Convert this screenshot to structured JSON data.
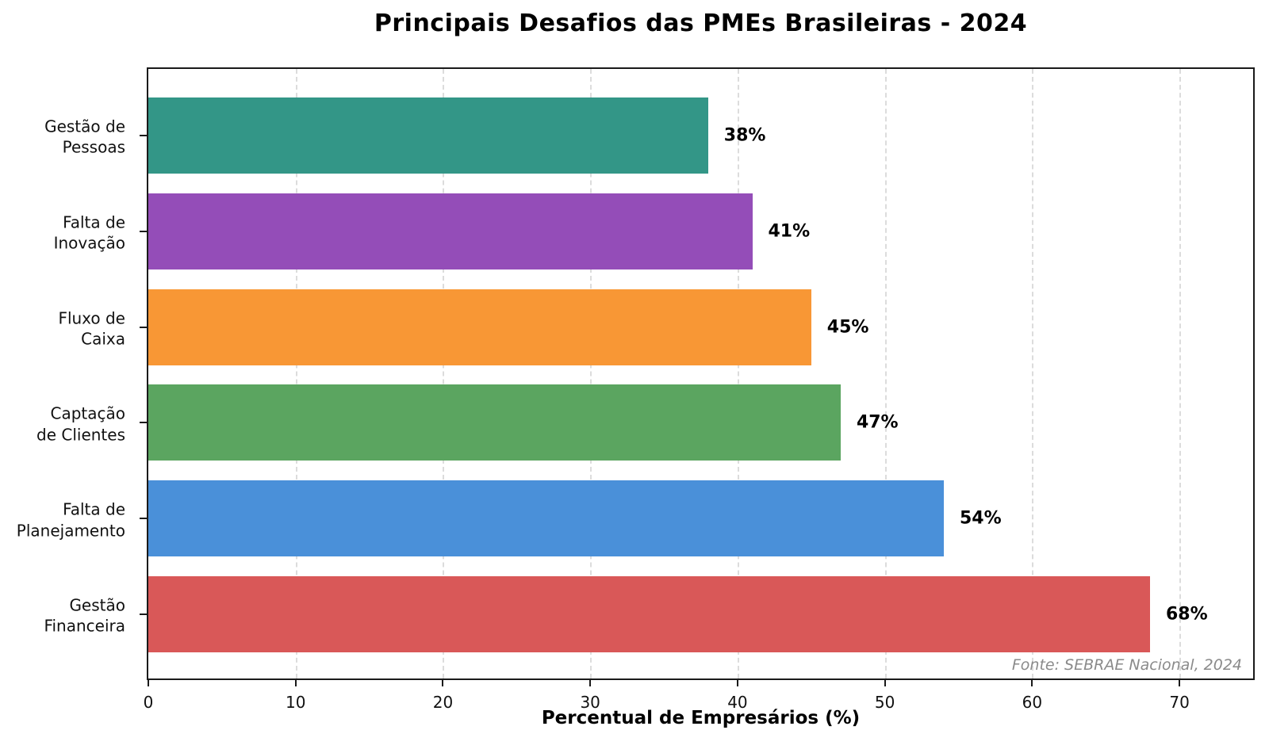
{
  "chart_data": {
    "type": "bar",
    "orientation": "horizontal",
    "title": "Principais Desafios das PMEs Brasileiras - 2024",
    "xlabel": "Percentual de Empresários (%)",
    "source_note": "Fonte: SEBRAE Nacional, 2024",
    "categories": [
      "Gestão de\nPessoas",
      "Falta de\nInovação",
      "Fluxo de\nCaixa",
      "Captação\nde Clientes",
      "Falta de\nPlanejamento",
      "Gestão\nFinanceira"
    ],
    "values": [
      38,
      41,
      45,
      47,
      54,
      68
    ],
    "value_labels": [
      "38%",
      "41%",
      "45%",
      "47%",
      "54%",
      "68%"
    ],
    "bar_colors": [
      "#339687",
      "#944DB8",
      "#F89735",
      "#5BA560",
      "#4A90D9",
      "#D95858"
    ],
    "xlim": [
      0,
      75
    ],
    "xticks": [
      0,
      10,
      20,
      30,
      40,
      50,
      60,
      70
    ],
    "grid": {
      "axis": "x",
      "style": "dashed",
      "color": "#DCDCDC"
    },
    "legend_position": "none"
  },
  "colors": {
    "spine": "#1A1A1A",
    "text": "#000000",
    "source_text": "#8A8A8A",
    "background": "#FFFFFF"
  }
}
